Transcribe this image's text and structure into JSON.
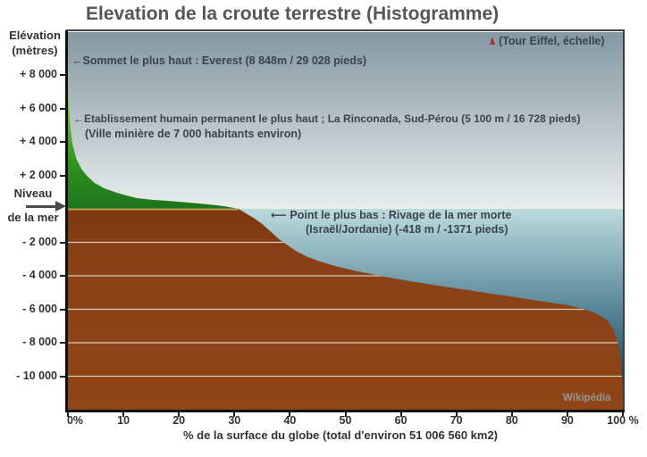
{
  "title": "Elevation de la croute terrestre (Histogramme)",
  "y_axis": {
    "title_line1": "Elévation",
    "title_line2": "(mètres)",
    "sea_level_label_line1": "Niveau",
    "sea_level_label_line2": "de la mer",
    "ticks": [
      {
        "label": "+ 8 000",
        "value": 8000
      },
      {
        "label": "+ 6 000",
        "value": 6000
      },
      {
        "label": "+ 4 000",
        "value": 4000
      },
      {
        "label": "+ 2 000",
        "value": 2000
      },
      {
        "label": "- 2 000",
        "value": -2000
      },
      {
        "label": "- 4 000",
        "value": -4000
      },
      {
        "label": "- 6 000",
        "value": -6000
      },
      {
        "label": "- 8 000",
        "value": -8000
      },
      {
        "label": "- 10 000",
        "value": -10000
      }
    ]
  },
  "x_axis": {
    "label": "% de la surface du globe (total d'environ 51 006 560 km2)",
    "ticks": [
      {
        "label": "0%",
        "value": 0
      },
      {
        "label": "10",
        "value": 10
      },
      {
        "label": "20",
        "value": 20
      },
      {
        "label": "30",
        "value": 30
      },
      {
        "label": "40",
        "value": 40
      },
      {
        "label": "50",
        "value": 50
      },
      {
        "label": "60",
        "value": 60
      },
      {
        "label": "70",
        "value": 70
      },
      {
        "label": "80",
        "value": 80
      },
      {
        "label": "90",
        "value": 90
      },
      {
        "label": "100 %",
        "value": 100
      }
    ]
  },
  "annotations": {
    "everest": {
      "text": "←Sommet le plus haut : Everest (8 848m / 29 028 pieds)"
    },
    "eiffel": {
      "text": "(Tour Eiffel, échelle)",
      "icon": "eiffel-tower-icon"
    },
    "rinconada": {
      "line1": "←Etablissement humain permanent le plus haut ; La Rinconada, Sud-Pérou  (5 100 m / 16 728 pieds)",
      "line2": "(Ville minière de 7 000 habitants environ)"
    },
    "dead_sea": {
      "line1": "⟵ Point le plus bas : Rivage de la mer morte",
      "line2": "(Israël/Jordanie)  (-418 m / -1371 pieds)"
    },
    "watermark": "Wikipédia"
  },
  "colors": {
    "title_text": "#54565A",
    "annotation_text": "#39444C",
    "sky_top": "#8497A2",
    "sky_bottom": "#E9EEED",
    "ocean_top": "#BCDBDD",
    "ocean_bottom": "#10293E",
    "land_top": "#C8EB55",
    "land_bottom": "#1D741C",
    "crust_top": "#7A3910",
    "crust_bottom": "#8F4517",
    "gridline": "#D6CCBC",
    "sea_level_line": "#BFA04F",
    "eiffel_accent": "#A43B28"
  },
  "chart_data": {
    "type": "area",
    "title": "Elevation de la croute terrestre (Histogramme)",
    "xlabel": "% de la surface du globe (total d'environ 51 006 560 km2)",
    "ylabel": "Elévation (mètres)",
    "xlim": [
      0,
      100
    ],
    "ylim": [
      -12100,
      10560
    ],
    "sea_level": 0,
    "grid": "horizontal, every 2000 m, drawn over crust only",
    "legend": "none",
    "x_pct": [
      0,
      0.15,
      0.4,
      0.8,
      1.5,
      2.5,
      3.5,
      4.8,
      6.5,
      8.5,
      10.5,
      12.5,
      15,
      18,
      21,
      24,
      26.5,
      28.5,
      29.8,
      30.7,
      31.5,
      32.5,
      33.5,
      35,
      36.5,
      38,
      39.5,
      41,
      43,
      45.5,
      48,
      51,
      54,
      57,
      60.5,
      64,
      68,
      72,
      76,
      80,
      84,
      87,
      90,
      92.5,
      94.5,
      96,
      97.3,
      98.3,
      99.1,
      99.6,
      100
    ],
    "elevation_m": [
      8848,
      6500,
      5000,
      3900,
      3000,
      2350,
      1950,
      1550,
      1230,
      1000,
      800,
      640,
      550,
      480,
      400,
      310,
      230,
      140,
      60,
      0,
      -150,
      -350,
      -550,
      -900,
      -1350,
      -1800,
      -2150,
      -2500,
      -2850,
      -3150,
      -3400,
      -3650,
      -3850,
      -4050,
      -4250,
      -4450,
      -4650,
      -4850,
      -5050,
      -5250,
      -5450,
      -5600,
      -5750,
      -5950,
      -6150,
      -6400,
      -6700,
      -7200,
      -8000,
      -9000,
      -11000
    ],
    "landmarks": [
      {
        "name": "Sommet le plus haut : Everest",
        "elevation_m": 8848,
        "note": "8 848m / 29 028 pieds"
      },
      {
        "name": "Etablissement humain permanent le plus haut ; La Rinconada, Sud-Pérou",
        "elevation_m": 5100,
        "note": "5 100 m / 16 728 pieds"
      },
      {
        "name": "Point le plus bas : Rivage de la mer morte (Israël/Jordanie)",
        "elevation_m": -418,
        "note": "-418 m / -1371 pieds"
      },
      {
        "name": "Tour Eiffel, échelle",
        "elevation_m": 300,
        "note": "shown as tiny scale marker"
      }
    ]
  }
}
